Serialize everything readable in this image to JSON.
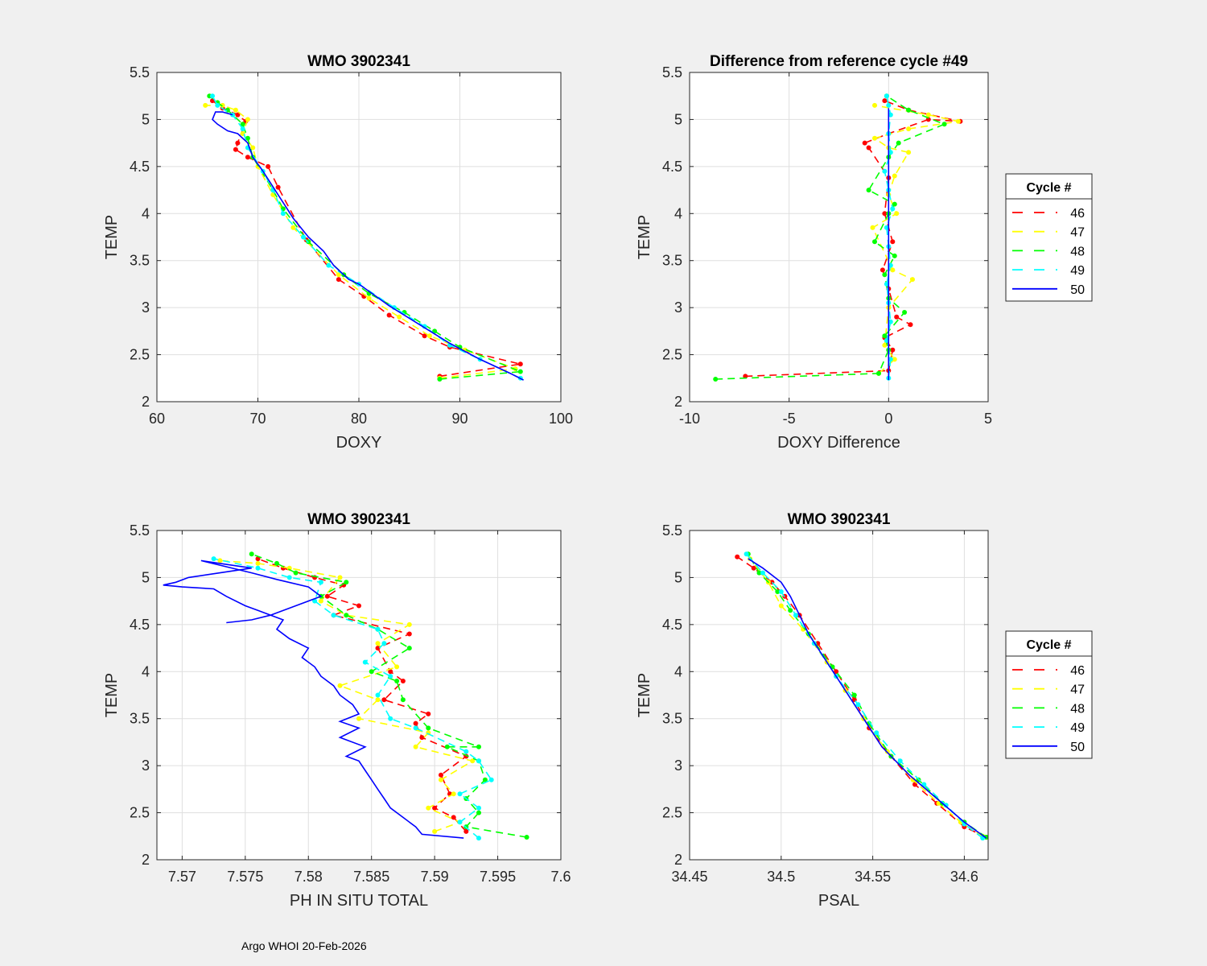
{
  "footer": "Argo WHOI 20-Feb-2026",
  "colors": {
    "c46": "#ff0000",
    "c47": "#ffff00",
    "c48": "#00ff00",
    "c49": "#00ffff",
    "c50": "#0000ff"
  },
  "chart_data": [
    {
      "id": "doxy",
      "type": "line",
      "title": "WMO 3902341",
      "xlabel": "DOXY",
      "ylabel": "TEMP",
      "xlim": [
        60,
        100
      ],
      "ylim": [
        2,
        5.5
      ],
      "xticks": [
        "60",
        "70",
        "80",
        "90",
        "100"
      ],
      "xtick_values": [
        60,
        70,
        80,
        90,
        100
      ],
      "yticks": [
        "2",
        "2.5",
        "3",
        "3.5",
        "4",
        "4.5",
        "5",
        "5.5"
      ],
      "ytick_values": [
        2,
        2.5,
        3,
        3.5,
        4,
        4.5,
        5,
        5.5
      ],
      "grid": true,
      "legend": null,
      "series": [
        {
          "name": "46",
          "color": "#ff0000",
          "style": "dashed",
          "markers": true,
          "x": [
            88.0,
            96.0,
            89.0,
            86.5,
            83.0,
            80.5,
            78.0,
            74.8,
            72.0,
            71.0,
            69.0,
            67.8,
            68.0,
            68.8,
            68.0,
            66.5,
            65.5
          ],
          "y": [
            2.27,
            2.4,
            2.58,
            2.7,
            2.92,
            3.12,
            3.3,
            3.72,
            4.28,
            4.5,
            4.6,
            4.68,
            4.75,
            4.98,
            5.05,
            5.12,
            5.2
          ]
        },
        {
          "name": "47",
          "color": "#ffff00",
          "style": "dashed",
          "markers": true,
          "x": [
            88.0,
            95.5,
            90.5,
            87.0,
            84.0,
            81.0,
            78.0,
            73.5,
            71.5,
            70.0,
            69.5,
            68.5,
            69.0,
            67.8,
            66.5,
            64.8
          ],
          "y": [
            2.25,
            2.35,
            2.55,
            2.7,
            2.9,
            3.1,
            3.35,
            3.85,
            4.2,
            4.5,
            4.7,
            4.85,
            5.0,
            5.1,
            5.15,
            5.15
          ]
        },
        {
          "name": "48",
          "color": "#00ff00",
          "style": "dashed",
          "markers": true,
          "x": [
            88.0,
            96.0,
            90.0,
            87.5,
            84.5,
            81.0,
            78.5,
            75.0,
            72.5,
            71.5,
            69.5,
            69.0,
            68.5,
            67.0,
            66.0,
            65.2
          ],
          "y": [
            2.24,
            2.32,
            2.58,
            2.75,
            2.95,
            3.15,
            3.35,
            3.7,
            4.05,
            4.25,
            4.6,
            4.8,
            4.95,
            5.1,
            5.18,
            5.25
          ]
        },
        {
          "name": "49",
          "color": "#00ffff",
          "style": "dashed",
          "markers": true,
          "x": [
            96.0,
            92.0,
            89.0,
            86.5,
            83.5,
            80.0,
            77.0,
            74.5,
            72.5,
            71.5,
            70.5,
            69.0,
            68.5,
            67.5,
            66.0,
            65.5
          ],
          "y": [
            2.25,
            2.45,
            2.6,
            2.8,
            3.0,
            3.25,
            3.45,
            3.75,
            4.0,
            4.25,
            4.45,
            4.7,
            4.9,
            5.05,
            5.15,
            5.25
          ]
        },
        {
          "name": "50",
          "color": "#0000ff",
          "style": "solid",
          "markers": false,
          "x": [
            96.3,
            95.0,
            92.0,
            89.0,
            86.0,
            83.0,
            80.0,
            79.0,
            77.5,
            76.5,
            75.0,
            73.5,
            72.0,
            70.5,
            69.5,
            69.0,
            68.0,
            67.0,
            66.0,
            65.5,
            65.8,
            66.5,
            67.5
          ],
          "y": [
            2.23,
            2.3,
            2.45,
            2.62,
            2.82,
            3.02,
            3.25,
            3.3,
            3.45,
            3.6,
            3.75,
            3.95,
            4.2,
            4.45,
            4.6,
            4.75,
            4.85,
            4.88,
            4.95,
            5.0,
            5.08,
            5.08,
            5.05
          ]
        }
      ]
    },
    {
      "id": "diff",
      "type": "line",
      "title": "Difference from reference cycle #49",
      "xlabel": "DOXY Difference",
      "ylabel": "TEMP",
      "xlim": [
        -10,
        5
      ],
      "ylim": [
        2,
        5.5
      ],
      "xticks": [
        "-10",
        "-5",
        "0",
        "5"
      ],
      "xtick_values": [
        -10,
        -5,
        0,
        5
      ],
      "yticks": [
        "2",
        "2.5",
        "3",
        "3.5",
        "4",
        "4.5",
        "5",
        "5.5"
      ],
      "ytick_values": [
        2,
        2.5,
        3,
        3.5,
        4,
        4.5,
        5,
        5.5
      ],
      "grid": true,
      "legend": {
        "title": "Cycle #",
        "placement": "right"
      },
      "series": [
        {
          "name": "46",
          "color": "#ff0000",
          "style": "dashed",
          "markers": true,
          "x": [
            -7.2,
            0.0,
            0.2,
            -0.2,
            1.1,
            0.4,
            0.0,
            -0.3,
            0.2,
            -0.2,
            0.0,
            -1.0,
            -1.2,
            0.0,
            2.0,
            3.6,
            1.0,
            -0.2
          ],
          "y": [
            2.27,
            2.33,
            2.55,
            2.68,
            2.82,
            2.9,
            3.2,
            3.4,
            3.7,
            4.0,
            4.38,
            4.7,
            4.75,
            4.85,
            5.0,
            4.98,
            5.1,
            5.2
          ]
        },
        {
          "name": "47",
          "color": "#ffff00",
          "style": "dashed",
          "markers": true,
          "x": [
            -0.5,
            0.3,
            -0.2,
            0.0,
            1.2,
            0.2,
            -0.8,
            0.4,
            0.0,
            0.3,
            1.0,
            0.0,
            -0.7,
            1.0,
            3.5,
            2.0,
            -0.7
          ],
          "y": [
            2.3,
            2.45,
            2.6,
            3.0,
            3.3,
            3.4,
            3.85,
            4.0,
            4.2,
            4.4,
            4.65,
            4.7,
            4.8,
            4.9,
            4.98,
            5.05,
            5.15
          ]
        },
        {
          "name": "48",
          "color": "#00ff00",
          "style": "dashed",
          "markers": true,
          "x": [
            -8.7,
            -0.5,
            0.0,
            -0.2,
            0.8,
            0.0,
            -0.2,
            0.3,
            -0.7,
            0.0,
            0.3,
            -1.0,
            0.0,
            0.5,
            2.8,
            1.0,
            -0.1
          ],
          "y": [
            2.24,
            2.3,
            2.55,
            2.7,
            2.95,
            3.1,
            3.35,
            3.55,
            3.7,
            4.0,
            4.1,
            4.25,
            4.6,
            4.75,
            4.95,
            5.1,
            5.25
          ]
        },
        {
          "name": "49",
          "color": "#00ffff",
          "style": "dashed",
          "markers": true,
          "x": [
            0.0,
            0.1,
            -0.1,
            0.1,
            0.0,
            -0.1,
            0.1,
            0.0,
            -0.1,
            0.2,
            0.0,
            -0.2,
            0.1,
            0.0,
            0.1,
            0.0,
            -0.1
          ],
          "y": [
            2.25,
            2.45,
            2.65,
            2.85,
            3.05,
            3.25,
            3.45,
            3.65,
            3.85,
            4.05,
            4.25,
            4.45,
            4.65,
            4.85,
            5.05,
            5.15,
            5.25
          ]
        },
        {
          "name": "50",
          "color": "#0000ff",
          "style": "solid",
          "markers": false,
          "x": [
            0.0,
            0.0
          ],
          "y": [
            2.23,
            5.12
          ]
        }
      ]
    },
    {
      "id": "ph",
      "type": "line",
      "title": "WMO 3902341",
      "xlabel": "PH IN SITU TOTAL",
      "ylabel": "TEMP",
      "xlim": [
        7.568,
        7.6
      ],
      "ylim": [
        2,
        5.5
      ],
      "xticks": [
        "7.57",
        "7.575",
        "7.58",
        "7.585",
        "7.59",
        "7.595",
        "7.6"
      ],
      "xtick_values": [
        7.57,
        7.575,
        7.58,
        7.585,
        7.59,
        7.595,
        7.6
      ],
      "yticks": [
        "2",
        "2.5",
        "3",
        "3.5",
        "4",
        "4.5",
        "5",
        "5.5"
      ],
      "ytick_values": [
        2,
        2.5,
        3,
        3.5,
        4,
        4.5,
        5,
        5.5
      ],
      "grid": true,
      "legend": null,
      "series": [
        {
          "name": "46",
          "color": "#ff0000",
          "style": "dashed",
          "markers": true,
          "x": [
            7.5925,
            7.5915,
            7.59,
            7.5912,
            7.5905,
            7.5925,
            7.589,
            7.5885,
            7.5895,
            7.586,
            7.5875,
            7.5865,
            7.5855,
            7.588,
            7.582,
            7.584,
            7.5815,
            7.5828,
            7.5805,
            7.578,
            7.576
          ],
          "y": [
            2.3,
            2.45,
            2.55,
            2.7,
            2.9,
            3.1,
            3.3,
            3.45,
            3.55,
            3.7,
            3.9,
            4.0,
            4.25,
            4.4,
            4.6,
            4.7,
            4.8,
            4.92,
            5.0,
            5.1,
            5.2
          ]
        },
        {
          "name": "47",
          "color": "#ffff00",
          "style": "dashed",
          "markers": true,
          "x": [
            7.59,
            7.592,
            7.5895,
            7.5915,
            7.5905,
            7.593,
            7.5885,
            7.5895,
            7.584,
            7.5855,
            7.5825,
            7.587,
            7.5855,
            7.588,
            7.583,
            7.581,
            7.5825,
            7.5785,
            7.576,
            7.573
          ],
          "y": [
            2.3,
            2.4,
            2.55,
            2.7,
            2.85,
            3.05,
            3.2,
            3.35,
            3.5,
            3.7,
            3.85,
            4.05,
            4.3,
            4.5,
            4.6,
            4.75,
            5.0,
            5.1,
            5.15,
            5.18
          ]
        },
        {
          "name": "48",
          "color": "#00ff00",
          "style": "dashed",
          "markers": true,
          "x": [
            7.5973,
            7.5925,
            7.5935,
            7.5925,
            7.594,
            7.5935,
            7.591,
            7.5935,
            7.5895,
            7.5875,
            7.587,
            7.585,
            7.588,
            7.5855,
            7.583,
            7.581,
            7.583,
            7.579,
            7.5775,
            7.5755
          ],
          "y": [
            2.24,
            2.35,
            2.5,
            2.65,
            2.85,
            3.05,
            3.2,
            3.2,
            3.4,
            3.7,
            3.9,
            4.0,
            4.25,
            4.45,
            4.6,
            4.8,
            4.95,
            5.05,
            5.15,
            5.25
          ]
        },
        {
          "name": "49",
          "color": "#00ffff",
          "style": "dashed",
          "markers": true,
          "x": [
            7.5935,
            7.592,
            7.5935,
            7.592,
            7.5945,
            7.5935,
            7.5925,
            7.5885,
            7.5865,
            7.5855,
            7.5865,
            7.5845,
            7.586,
            7.5855,
            7.582,
            7.5805,
            7.581,
            7.5785,
            7.576,
            7.5725
          ],
          "y": [
            2.23,
            2.4,
            2.55,
            2.7,
            2.85,
            3.05,
            3.15,
            3.4,
            3.5,
            3.75,
            3.95,
            4.1,
            4.3,
            4.45,
            4.6,
            4.75,
            4.95,
            5.0,
            5.1,
            5.2
          ]
        },
        {
          "name": "50",
          "color": "#0000ff",
          "style": "solid",
          "markers": false,
          "x": [
            7.5923,
            7.589,
            7.5885,
            7.5875,
            7.5865,
            7.586,
            7.5855,
            7.585,
            7.5845,
            7.584,
            7.583,
            7.5845,
            7.5825,
            7.584,
            7.5825,
            7.584,
            7.5835,
            7.5825,
            7.582,
            7.581,
            7.5805,
            7.5795,
            7.58,
            7.5785,
            7.5775,
            7.578,
            7.576,
            7.575,
            7.5735,
            7.5725,
            7.57,
            7.5685,
            7.5695,
            7.5705,
            7.573,
            7.5755,
            7.573,
            7.5715,
            7.5755,
            7.5775,
            7.58,
            7.581,
            7.579,
            7.577,
            7.5755,
            7.5735
          ],
          "y": [
            2.23,
            2.27,
            2.35,
            2.45,
            2.55,
            2.65,
            2.75,
            2.85,
            2.95,
            3.05,
            3.1,
            3.2,
            3.3,
            3.4,
            3.47,
            3.55,
            3.65,
            3.75,
            3.85,
            3.95,
            4.05,
            4.15,
            4.25,
            4.35,
            4.45,
            4.55,
            4.65,
            4.7,
            4.8,
            4.88,
            4.9,
            4.92,
            4.95,
            5.0,
            5.05,
            5.1,
            5.15,
            5.18,
            5.05,
            4.98,
            4.9,
            4.8,
            4.7,
            4.6,
            4.55,
            4.52
          ]
        }
      ]
    },
    {
      "id": "psal",
      "type": "line",
      "title": "WMO 3902341",
      "xlabel": "PSAL",
      "ylabel": "TEMP",
      "xlim": [
        34.45,
        34.613
      ],
      "ylim": [
        2,
        5.5
      ],
      "xticks": [
        "34.45",
        "34.5",
        "34.55",
        "34.6"
      ],
      "xtick_values": [
        34.45,
        34.5,
        34.55,
        34.6
      ],
      "yticks": [
        "2",
        "2.5",
        "3",
        "3.5",
        "4",
        "4.5",
        "5",
        "5.5"
      ],
      "ytick_values": [
        2,
        2.5,
        3,
        3.5,
        4,
        4.5,
        5,
        5.5
      ],
      "grid": true,
      "legend": {
        "title": "Cycle #",
        "placement": "right"
      },
      "series": [
        {
          "name": "46",
          "color": "#ff0000",
          "style": "dashed",
          "markers": true,
          "x": [
            34.612,
            34.6,
            34.585,
            34.573,
            34.56,
            34.548,
            34.54,
            34.53,
            34.52,
            34.51,
            34.502,
            34.495,
            34.485,
            34.476
          ],
          "y": [
            2.24,
            2.35,
            2.6,
            2.8,
            3.1,
            3.4,
            3.7,
            4.0,
            4.3,
            4.6,
            4.8,
            4.95,
            5.1,
            5.22
          ]
        },
        {
          "name": "47",
          "color": "#ffff00",
          "style": "dashed",
          "markers": true,
          "x": [
            34.61,
            34.598,
            34.586,
            34.572,
            34.558,
            34.545,
            34.535,
            34.525,
            34.512,
            34.5,
            34.493,
            34.483
          ],
          "y": [
            2.25,
            2.4,
            2.6,
            2.85,
            3.15,
            3.5,
            3.8,
            4.1,
            4.45,
            4.7,
            4.95,
            5.2
          ]
        },
        {
          "name": "48",
          "color": "#00ff00",
          "style": "dashed",
          "markers": true,
          "x": [
            34.612,
            34.6,
            34.588,
            34.575,
            34.56,
            34.548,
            34.54,
            34.528,
            34.515,
            34.505,
            34.498,
            34.488,
            34.482
          ],
          "y": [
            2.24,
            2.4,
            2.6,
            2.85,
            3.1,
            3.45,
            3.75,
            4.05,
            4.4,
            4.65,
            4.85,
            5.05,
            5.25
          ]
        },
        {
          "name": "49",
          "color": "#00ffff",
          "style": "dashed",
          "markers": true,
          "x": [
            34.61,
            34.6,
            34.59,
            34.578,
            34.565,
            34.552,
            34.542,
            34.53,
            34.518,
            34.508,
            34.5,
            34.49,
            34.481
          ],
          "y": [
            2.23,
            2.38,
            2.58,
            2.8,
            3.05,
            3.35,
            3.65,
            3.95,
            4.3,
            4.6,
            4.85,
            5.05,
            5.25
          ]
        },
        {
          "name": "50",
          "color": "#0000ff",
          "style": "solid",
          "markers": false,
          "x": [
            34.612,
            34.6,
            34.585,
            34.57,
            34.555,
            34.545,
            34.535,
            34.525,
            34.515,
            34.51,
            34.505,
            34.5,
            34.49,
            34.482
          ],
          "y": [
            2.23,
            2.4,
            2.65,
            2.9,
            3.2,
            3.5,
            3.8,
            4.1,
            4.4,
            4.6,
            4.8,
            4.95,
            5.1,
            5.2
          ]
        }
      ]
    }
  ]
}
